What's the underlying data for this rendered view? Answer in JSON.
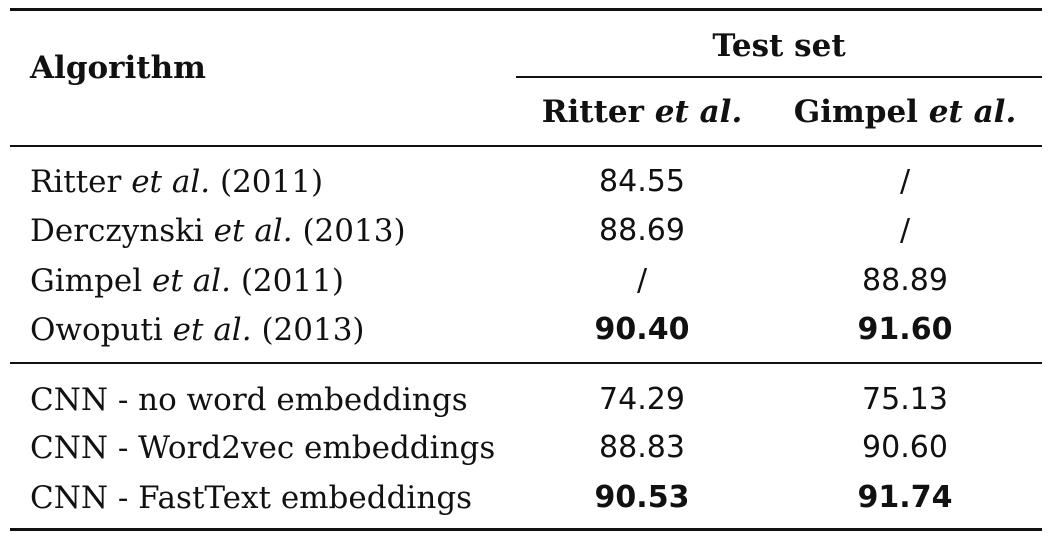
{
  "header": {
    "algorithm": "Algorithm",
    "test_set": "Test set",
    "col_ritter_name": "Ritter",
    "col_gimpel_name": "Gimpel",
    "etal": "et al."
  },
  "group1": [
    {
      "name": "Ritter",
      "etal": "et al.",
      "year": "(2011)",
      "ritter": "84.55",
      "gimpel": "/",
      "bold": false
    },
    {
      "name": "Derczynski",
      "etal": "et al.",
      "year": "(2013)",
      "ritter": "88.69",
      "gimpel": "/",
      "bold": false
    },
    {
      "name": "Gimpel",
      "etal": "et al.",
      "year": "(2011)",
      "ritter": "/",
      "gimpel": "88.89",
      "bold": false
    },
    {
      "name": "Owoputi",
      "etal": "et al.",
      "year": "(2013)",
      "ritter": "90.40",
      "gimpel": "91.60",
      "bold": true
    }
  ],
  "group2": [
    {
      "name": "CNN - no word embeddings",
      "ritter": "74.29",
      "gimpel": "75.13",
      "bold": false
    },
    {
      "name": "CNN - Word2vec embeddings",
      "ritter": "88.83",
      "gimpel": "90.60",
      "bold": false
    },
    {
      "name": "CNN - FastText embeddings",
      "ritter": "90.53",
      "gimpel": "91.74",
      "bold": true
    }
  ]
}
